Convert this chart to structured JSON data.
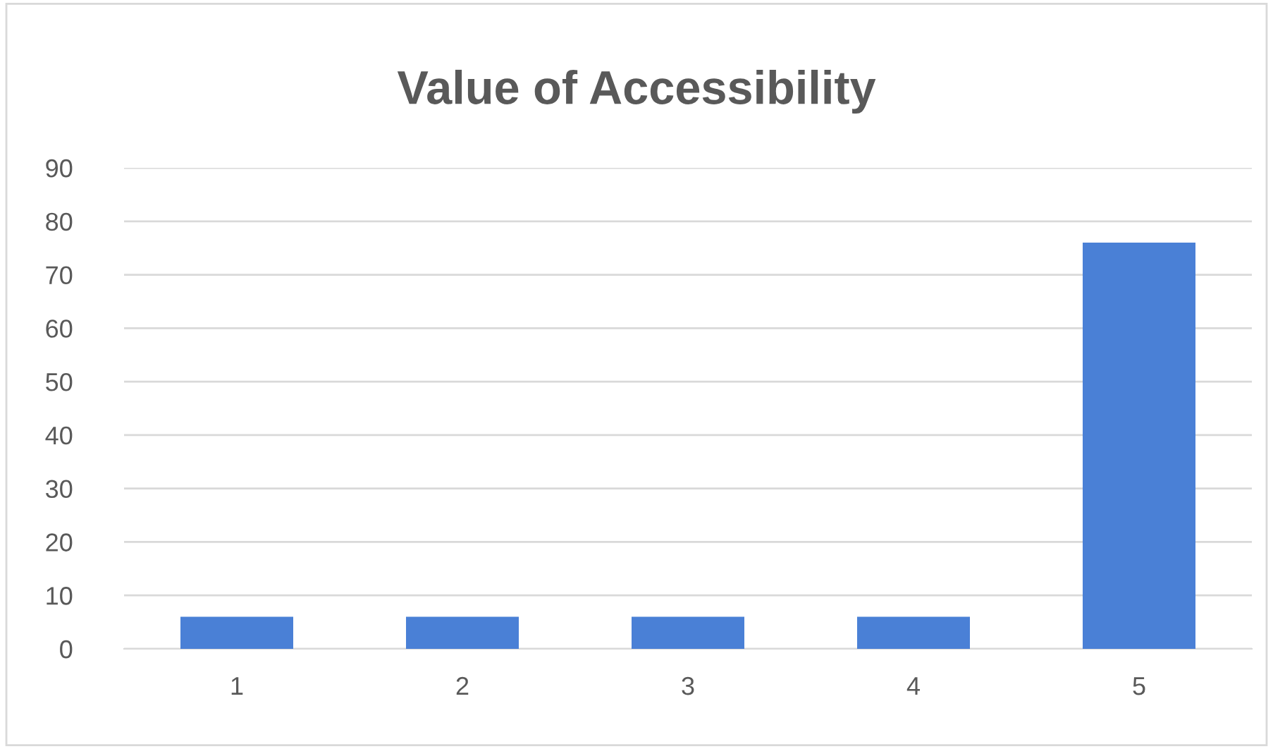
{
  "chart_data": {
    "type": "bar",
    "title": "Value of Accessibility",
    "categories": [
      "1",
      "2",
      "3",
      "4",
      "5"
    ],
    "values": [
      6,
      6,
      6,
      6,
      76
    ],
    "color": "#4a80d6",
    "ylim": [
      0,
      90
    ],
    "yticks": [
      0,
      10,
      20,
      30,
      40,
      50,
      60,
      70,
      80,
      90
    ],
    "grid": "y"
  }
}
